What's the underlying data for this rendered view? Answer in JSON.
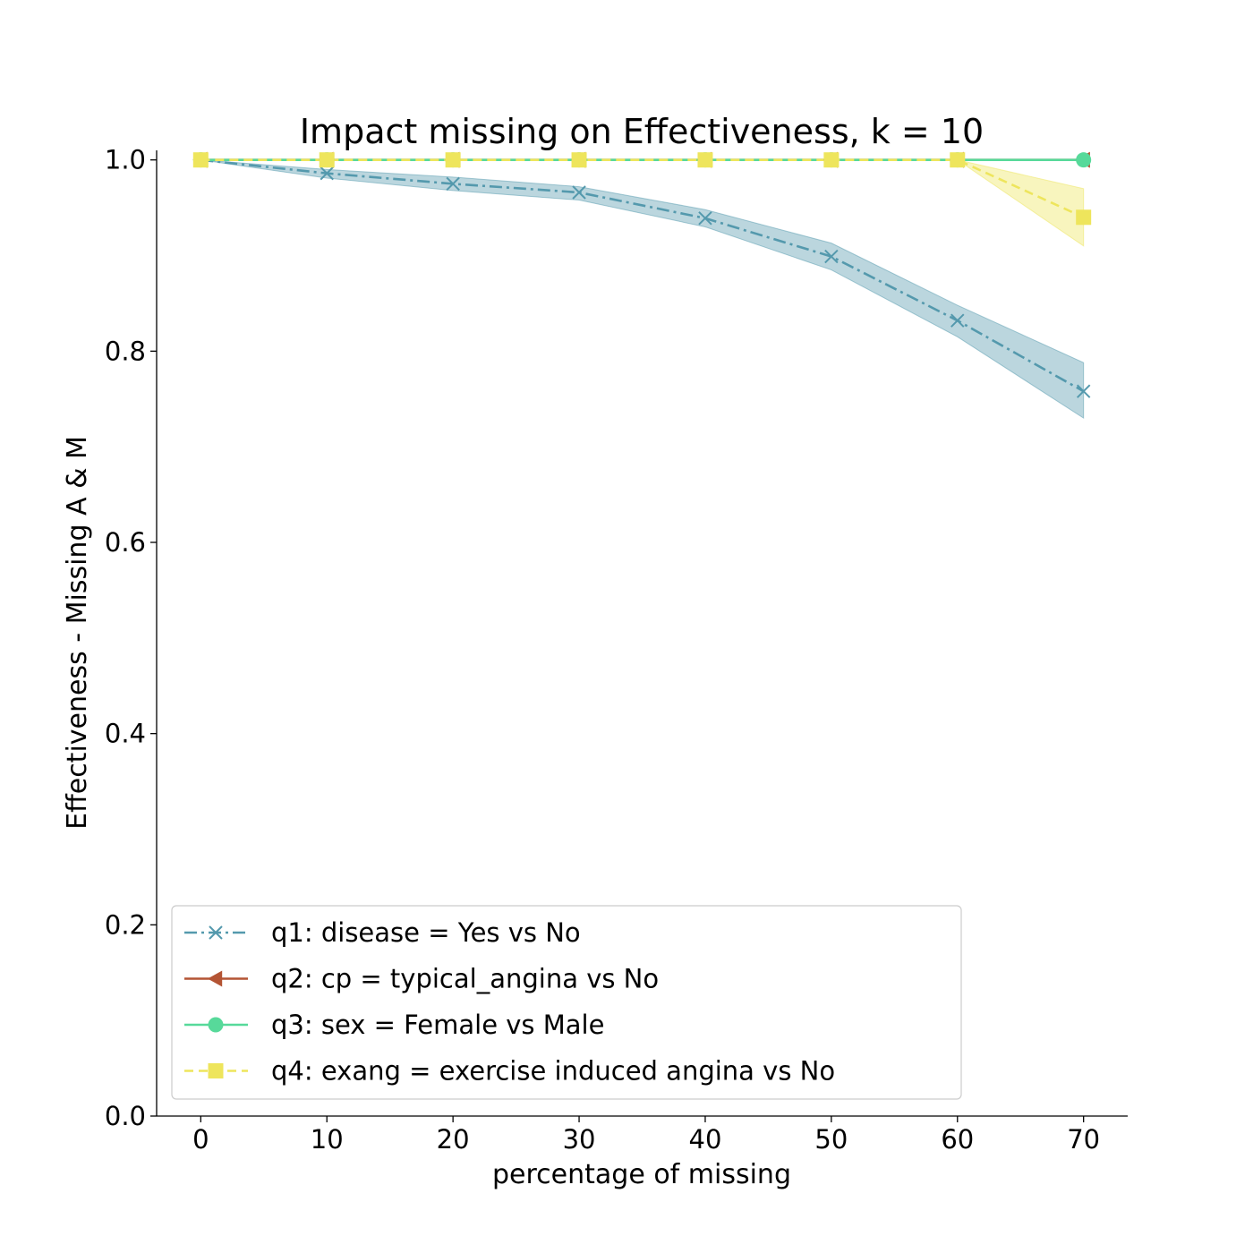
{
  "chart_data": {
    "type": "line",
    "title": "Impact missing on Effectiveness, k = 10",
    "xlabel": "percentage of missing",
    "ylabel": "Effectiveness - Missing A & M",
    "x": [
      0,
      10,
      20,
      30,
      40,
      50,
      60,
      70
    ],
    "xticks": [
      "0",
      "10",
      "20",
      "30",
      "40",
      "50",
      "60",
      "70"
    ],
    "yticks": [
      "0.0",
      "0.2",
      "0.4",
      "0.6",
      "0.8",
      "1.0"
    ],
    "xlim": [
      -3.5,
      73.5
    ],
    "ylim": [
      0,
      1.01
    ],
    "grid": false,
    "legend_position": "lower-left",
    "series": [
      {
        "name": "q1: disease = Yes vs No",
        "values": [
          1.0,
          0.986,
          0.975,
          0.966,
          0.939,
          0.899,
          0.832,
          0.758
        ],
        "band_low": [
          1.0,
          0.981,
          0.968,
          0.958,
          0.93,
          0.885,
          0.815,
          0.73
        ],
        "band_high": [
          1.0,
          0.99,
          0.982,
          0.972,
          0.948,
          0.913,
          0.848,
          0.788
        ],
        "color": "#5499ad",
        "dash": "14 5 3 5",
        "marker": "x"
      },
      {
        "name": "q2: cp = typical_angina vs No",
        "values": [
          1.0,
          1.0,
          1.0,
          1.0,
          1.0,
          1.0,
          1.0,
          1.0
        ],
        "color": "#b45434",
        "dash": "",
        "marker": "triangle-left"
      },
      {
        "name": "q3: sex = Female vs Male",
        "values": [
          1.0,
          1.0,
          1.0,
          1.0,
          1.0,
          1.0,
          1.0,
          1.0
        ],
        "color": "#57d99a",
        "dash": "",
        "marker": "circle"
      },
      {
        "name": "q4: exang = exercise induced angina vs No",
        "values": [
          1.0,
          1.0,
          1.0,
          1.0,
          1.0,
          1.0,
          1.0,
          0.94
        ],
        "band_low": [
          1.0,
          1.0,
          1.0,
          1.0,
          1.0,
          1.0,
          1.0,
          0.91
        ],
        "band_high": [
          1.0,
          1.0,
          1.0,
          1.0,
          1.0,
          1.0,
          1.0,
          0.97
        ],
        "color": "#eee55c",
        "dash": "10 6",
        "marker": "square"
      }
    ]
  }
}
